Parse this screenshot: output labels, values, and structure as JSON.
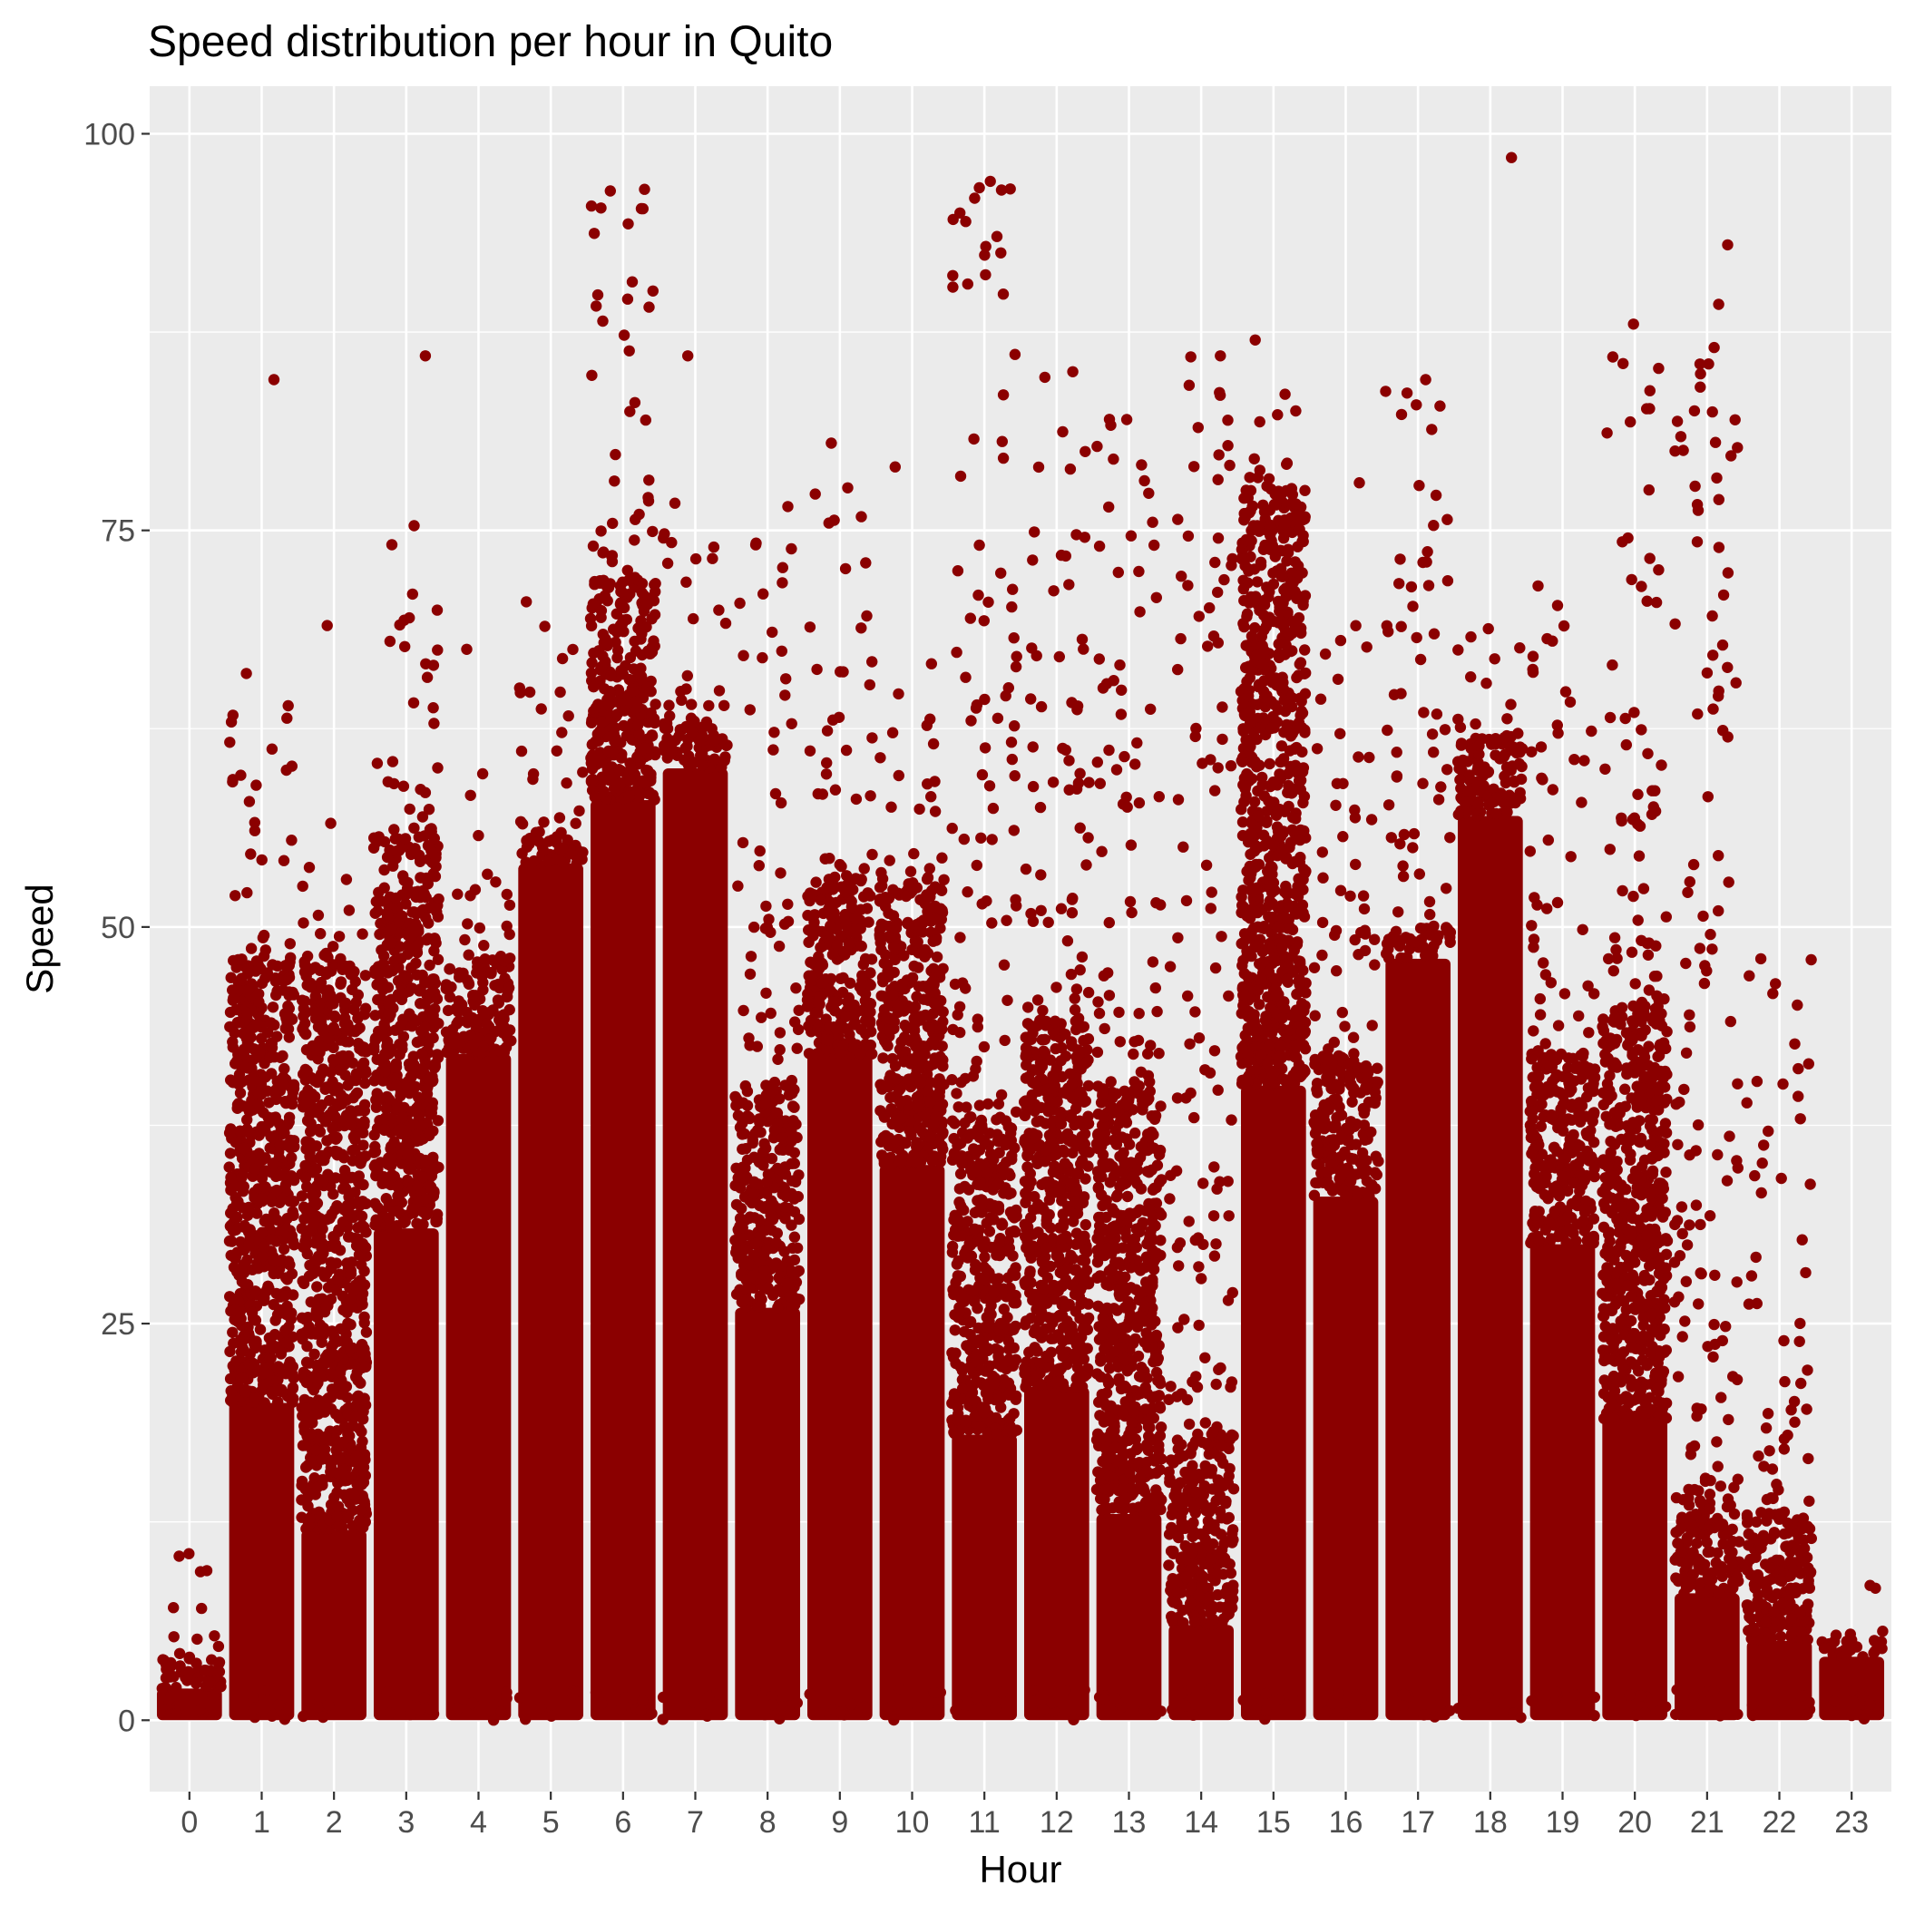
{
  "chart_data": {
    "type": "scatter",
    "title": "Speed distribution per hour in Quito",
    "xlabel": "Hour",
    "ylabel": "Speed",
    "x_ticks": [
      0,
      1,
      2,
      3,
      4,
      5,
      6,
      7,
      8,
      9,
      10,
      11,
      12,
      13,
      14,
      15,
      16,
      17,
      18,
      19,
      20,
      21,
      22,
      23
    ],
    "y_ticks": [
      0,
      25,
      50,
      75,
      100
    ],
    "xlim": [
      -0.55,
      23.55
    ],
    "ylim": [
      -4.5,
      103
    ],
    "grid": true,
    "legend": "none",
    "point_color": "#8B0000",
    "panel_background": "#EBEBEB",
    "grid_color": "#FFFFFF",
    "jitter_width": 0.45,
    "series": [
      {
        "hours": [
          0,
          1,
          2,
          3,
          4,
          5,
          6,
          7,
          8,
          9,
          10,
          11,
          12,
          13,
          14,
          15,
          16,
          17,
          18,
          19,
          20,
          21,
          22,
          23
        ],
        "dense_band_top": [
          2,
          20,
          12,
          31,
          42,
          54,
          58,
          60,
          26,
          42,
          35,
          18,
          21,
          13,
          6,
          40,
          33,
          48,
          57,
          30,
          19,
          8,
          5,
          4
        ],
        "medium_band_top": [
          4,
          48,
          48,
          56,
          48,
          56,
          72,
          63,
          40,
          53,
          53,
          38,
          44,
          40,
          18,
          78,
          42,
          50,
          62,
          42,
          45,
          14,
          13,
          5
        ],
        "max_speed": [
          10.5,
          84.5,
          69,
          86,
          67.5,
          70.5,
          96.5,
          86,
          76.5,
          80.5,
          79,
          97,
          85,
          82,
          86,
          87,
          78,
          84.5,
          98.5,
          71.5,
          88,
          93,
          48,
          8.5
        ],
        "sparse_max": [
          10.5,
          66,
          58,
          75.5,
          60,
          69.5,
          96.5,
          77.5,
          74.5,
          78,
          67.5,
          97,
          85,
          82,
          86,
          85,
          71,
          84.5,
          70.5,
          71.5,
          86,
          90,
          48,
          8.5
        ]
      }
    ]
  }
}
